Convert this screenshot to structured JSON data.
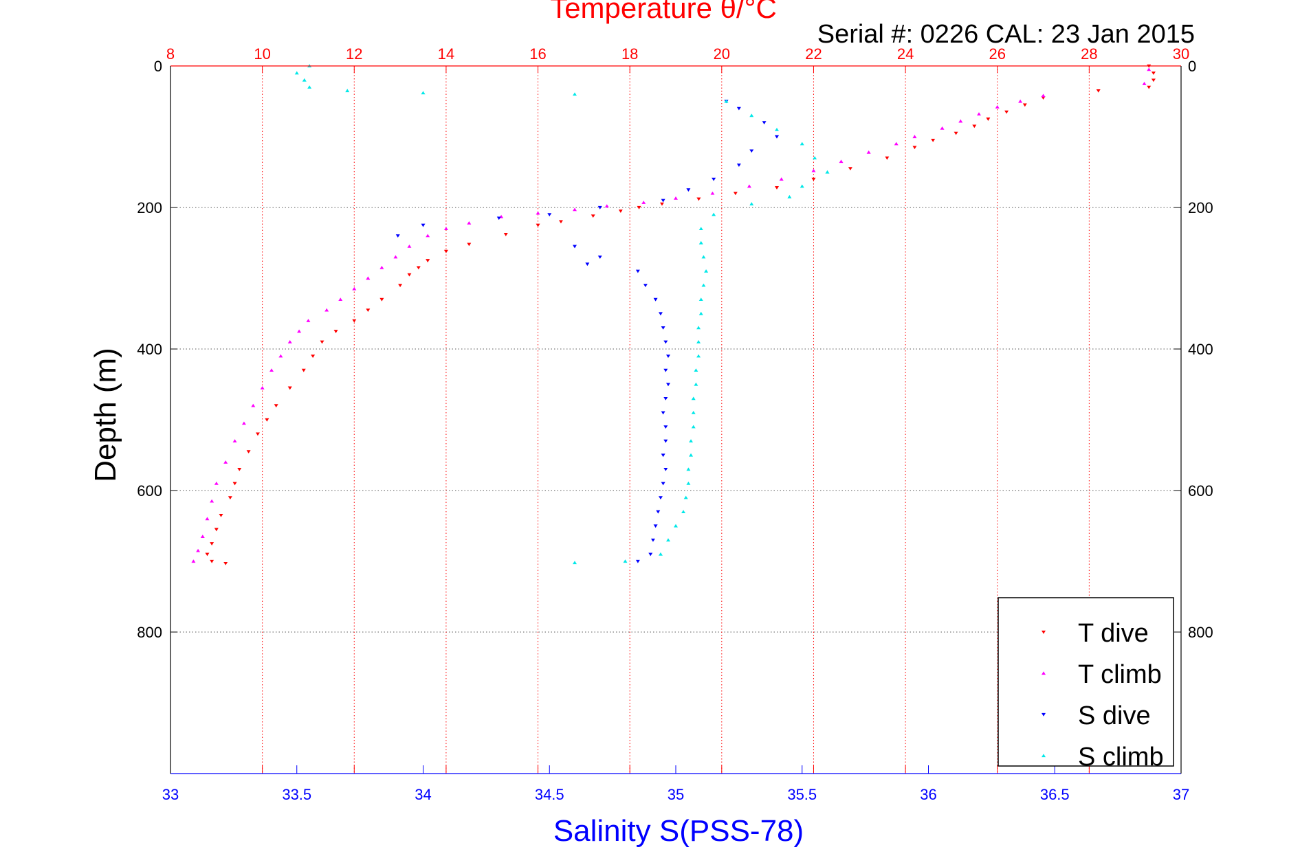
{
  "chart_data": {
    "type": "scatter",
    "title": "Temperature θ/°C",
    "subtitle": "Serial #: 0226  CAL: 23 Jan 2015",
    "xlabel": "Salinity S(PSS-78)",
    "ylabel": "Depth (m)",
    "top_axis": {
      "label": "Temperature θ/°C",
      "lim": [
        8,
        30
      ],
      "ticks": [
        8,
        10,
        12,
        14,
        16,
        18,
        20,
        22,
        24,
        26,
        28,
        30
      ],
      "tick_labels": [
        "8",
        "10",
        "12",
        "14",
        "16",
        "18",
        "20",
        "22",
        "24",
        "26",
        "28",
        "30"
      ],
      "color": "#ff0000"
    },
    "bottom_axis": {
      "label": "Salinity S(PSS-78)",
      "lim": [
        33,
        37
      ],
      "ticks": [
        33,
        33.5,
        34,
        34.5,
        35,
        35.5,
        36,
        36.5,
        37
      ],
      "tick_labels": [
        "33",
        "33.5",
        "34",
        "34.5",
        "35",
        "35.5",
        "36",
        "36.5",
        "37"
      ],
      "color": "#0000ff"
    },
    "y_axis": {
      "lim": [
        0,
        1000
      ],
      "reversed": true,
      "ticks": [
        0,
        200,
        400,
        600,
        800
      ],
      "tick_labels": [
        "0",
        "200",
        "400",
        "600",
        "800"
      ]
    },
    "grid": true,
    "legend_position": "bottom-right",
    "series": [
      {
        "name": "T dive",
        "color": "#ff0000",
        "marker": "triangle-down",
        "axis": "temperature",
        "points": [
          [
            29.3,
            0
          ],
          [
            29.4,
            10
          ],
          [
            29.4,
            20
          ],
          [
            29.3,
            30
          ],
          [
            28.2,
            35
          ],
          [
            27.0,
            45
          ],
          [
            26.6,
            55
          ],
          [
            26.2,
            65
          ],
          [
            25.8,
            75
          ],
          [
            25.5,
            85
          ],
          [
            25.1,
            95
          ],
          [
            24.6,
            105
          ],
          [
            24.2,
            115
          ],
          [
            23.6,
            130
          ],
          [
            22.8,
            145
          ],
          [
            22.0,
            160
          ],
          [
            21.2,
            172
          ],
          [
            20.3,
            180
          ],
          [
            19.5,
            188
          ],
          [
            18.7,
            195
          ],
          [
            18.2,
            200
          ],
          [
            17.8,
            205
          ],
          [
            17.2,
            212
          ],
          [
            16.5,
            220
          ],
          [
            16.0,
            225
          ],
          [
            15.3,
            238
          ],
          [
            14.5,
            252
          ],
          [
            14.0,
            262
          ],
          [
            13.6,
            275
          ],
          [
            13.4,
            285
          ],
          [
            13.2,
            295
          ],
          [
            13.0,
            310
          ],
          [
            12.6,
            330
          ],
          [
            12.3,
            345
          ],
          [
            12.0,
            360
          ],
          [
            11.6,
            375
          ],
          [
            11.3,
            390
          ],
          [
            11.1,
            410
          ],
          [
            10.9,
            430
          ],
          [
            10.6,
            455
          ],
          [
            10.3,
            480
          ],
          [
            10.1,
            500
          ],
          [
            9.9,
            520
          ],
          [
            9.7,
            545
          ],
          [
            9.5,
            570
          ],
          [
            9.4,
            590
          ],
          [
            9.3,
            610
          ],
          [
            9.1,
            635
          ],
          [
            9.0,
            655
          ],
          [
            8.9,
            675
          ],
          [
            8.8,
            690
          ],
          [
            8.9,
            700
          ],
          [
            9.2,
            703
          ]
        ]
      },
      {
        "name": "T climb",
        "color": "#ff00ff",
        "marker": "triangle-up",
        "axis": "temperature",
        "points": [
          [
            29.3,
            5
          ],
          [
            29.2,
            25
          ],
          [
            27.0,
            42
          ],
          [
            26.5,
            50
          ],
          [
            26.0,
            58
          ],
          [
            25.6,
            68
          ],
          [
            25.2,
            78
          ],
          [
            24.8,
            88
          ],
          [
            24.2,
            100
          ],
          [
            23.8,
            110
          ],
          [
            23.2,
            122
          ],
          [
            22.6,
            135
          ],
          [
            22.0,
            148
          ],
          [
            21.3,
            160
          ],
          [
            20.6,
            170
          ],
          [
            19.8,
            180
          ],
          [
            19.0,
            187
          ],
          [
            18.3,
            193
          ],
          [
            17.5,
            198
          ],
          [
            16.8,
            203
          ],
          [
            16.0,
            208
          ],
          [
            15.2,
            213
          ],
          [
            14.5,
            222
          ],
          [
            14.0,
            230
          ],
          [
            13.6,
            240
          ],
          [
            13.2,
            255
          ],
          [
            12.9,
            270
          ],
          [
            12.6,
            285
          ],
          [
            12.3,
            300
          ],
          [
            12.0,
            315
          ],
          [
            11.7,
            330
          ],
          [
            11.4,
            345
          ],
          [
            11.0,
            360
          ],
          [
            10.8,
            375
          ],
          [
            10.6,
            390
          ],
          [
            10.4,
            410
          ],
          [
            10.2,
            430
          ],
          [
            10.0,
            455
          ],
          [
            9.8,
            480
          ],
          [
            9.6,
            505
          ],
          [
            9.4,
            530
          ],
          [
            9.2,
            560
          ],
          [
            9.0,
            590
          ],
          [
            8.9,
            615
          ],
          [
            8.8,
            640
          ],
          [
            8.7,
            665
          ],
          [
            8.6,
            685
          ],
          [
            8.5,
            700
          ]
        ]
      },
      {
        "name": "S dive",
        "color": "#0000ff",
        "marker": "triangle-down",
        "axis": "salinity",
        "points": [
          [
            35.2,
            50
          ],
          [
            35.25,
            60
          ],
          [
            35.35,
            80
          ],
          [
            35.4,
            100
          ],
          [
            35.3,
            120
          ],
          [
            35.25,
            140
          ],
          [
            35.15,
            160
          ],
          [
            35.05,
            175
          ],
          [
            34.95,
            190
          ],
          [
            34.7,
            200
          ],
          [
            34.5,
            210
          ],
          [
            34.3,
            215
          ],
          [
            34.0,
            225
          ],
          [
            33.9,
            240
          ],
          [
            34.6,
            255
          ],
          [
            34.7,
            270
          ],
          [
            34.65,
            280
          ],
          [
            34.85,
            290
          ],
          [
            34.88,
            310
          ],
          [
            34.92,
            330
          ],
          [
            34.94,
            350
          ],
          [
            34.95,
            370
          ],
          [
            34.96,
            390
          ],
          [
            34.97,
            410
          ],
          [
            34.96,
            430
          ],
          [
            34.97,
            450
          ],
          [
            34.96,
            470
          ],
          [
            34.95,
            490
          ],
          [
            34.96,
            510
          ],
          [
            34.96,
            530
          ],
          [
            34.95,
            550
          ],
          [
            34.96,
            570
          ],
          [
            34.95,
            590
          ],
          [
            34.94,
            610
          ],
          [
            34.93,
            630
          ],
          [
            34.92,
            650
          ],
          [
            34.91,
            670
          ],
          [
            34.9,
            690
          ],
          [
            34.85,
            700
          ]
        ]
      },
      {
        "name": "S climb",
        "color": "#00e8e8",
        "marker": "triangle-up",
        "axis": "salinity",
        "points": [
          [
            33.55,
            0
          ],
          [
            33.5,
            10
          ],
          [
            33.53,
            20
          ],
          [
            33.55,
            30
          ],
          [
            33.7,
            35
          ],
          [
            34.0,
            38
          ],
          [
            34.6,
            40
          ],
          [
            35.2,
            50
          ],
          [
            35.3,
            70
          ],
          [
            35.4,
            90
          ],
          [
            35.5,
            110
          ],
          [
            35.55,
            130
          ],
          [
            35.6,
            150
          ],
          [
            35.5,
            170
          ],
          [
            35.45,
            185
          ],
          [
            35.3,
            195
          ],
          [
            35.15,
            210
          ],
          [
            35.1,
            230
          ],
          [
            35.1,
            250
          ],
          [
            35.11,
            270
          ],
          [
            35.12,
            290
          ],
          [
            35.11,
            310
          ],
          [
            35.1,
            330
          ],
          [
            35.1,
            350
          ],
          [
            35.09,
            370
          ],
          [
            35.09,
            390
          ],
          [
            35.09,
            410
          ],
          [
            35.08,
            430
          ],
          [
            35.08,
            450
          ],
          [
            35.07,
            470
          ],
          [
            35.07,
            490
          ],
          [
            35.07,
            510
          ],
          [
            35.06,
            530
          ],
          [
            35.06,
            550
          ],
          [
            35.05,
            570
          ],
          [
            35.05,
            590
          ],
          [
            35.04,
            610
          ],
          [
            35.03,
            630
          ],
          [
            35.0,
            650
          ],
          [
            34.97,
            670
          ],
          [
            34.94,
            690
          ],
          [
            34.8,
            700
          ],
          [
            34.6,
            702
          ]
        ]
      }
    ],
    "legend": [
      "T dive",
      "T climb",
      "S dive",
      "S climb"
    ]
  }
}
